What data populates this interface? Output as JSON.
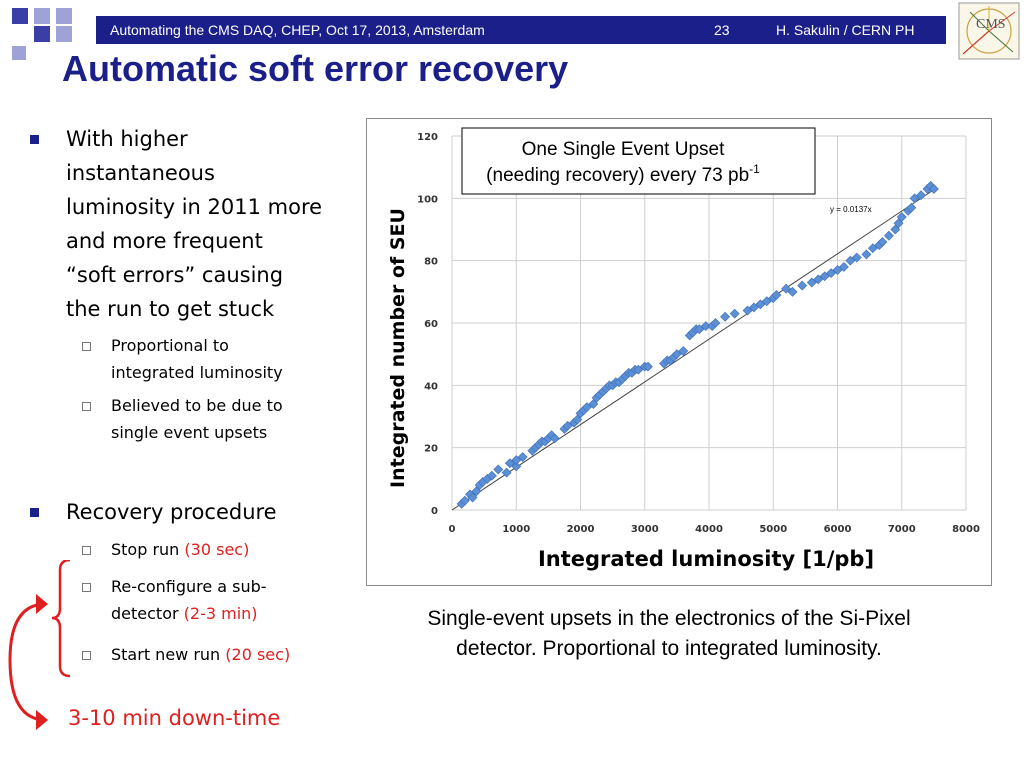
{
  "header": {
    "left_text": "Automating the CMS DAQ, CHEP, Oct 17, 2013, Amsterdam",
    "page_number": "23",
    "author": "H. Sakulin / CERN PH",
    "logo_text": "CMS",
    "colors": {
      "bar": "#1b1f8a",
      "accent_red": "#e02020"
    }
  },
  "slide": {
    "title": "Automatic soft error recovery",
    "bullets": [
      {
        "lines": [
          "With higher",
          "instantaneous",
          "luminosity in 2011 more",
          "and more frequent",
          "“soft errors” causing",
          "the run to get stuck"
        ],
        "sub": [
          {
            "lines": [
              "Proportional to",
              "integrated luminosity"
            ]
          },
          {
            "lines": [
              "Believed to be due to",
              "single event upsets"
            ]
          }
        ]
      },
      {
        "lines": [
          "Recovery procedure"
        ],
        "sub": [
          {
            "text": "Stop run",
            "highlight": "(30 sec)"
          },
          {
            "text_line1": "Re-configure a sub-",
            "text_line2": "detector",
            "highlight": "(2-3 min)"
          },
          {
            "text": "Start new run",
            "highlight": "(20 sec)"
          }
        ]
      }
    ],
    "downtime": "3-10 min down-time",
    "caption_lines": [
      "Single-event upsets in the electronics of the Si-Pixel",
      "detector. Proportional to integrated luminosity."
    ]
  },
  "chart_data": {
    "type": "scatter",
    "title": "",
    "xlabel": "Integrated luminosity [1/pb]",
    "ylabel": "Integrated number of SEU",
    "xlim": [
      0,
      8000
    ],
    "ylim": [
      0,
      120
    ],
    "xticks": [
      "0",
      "1000",
      "2000",
      "3000",
      "4000",
      "5000",
      "6000",
      "7000",
      "8000"
    ],
    "yticks": [
      "0",
      "20",
      "40",
      "60",
      "80",
      "100",
      "120"
    ],
    "grid": true,
    "annotation_line1": "One Single Event Upset",
    "annotation_line2_main": "(needing recovery) every 73 pb",
    "annotation_line2_sup": "-1",
    "fit_label": "y = 0.0137x",
    "fit_slope": 0.0137,
    "fit_range": [
      0,
      7500
    ],
    "series": [
      {
        "name": "SEU",
        "color": "#5b8fd6",
        "points": [
          [
            150,
            2
          ],
          [
            200,
            3
          ],
          [
            280,
            5
          ],
          [
            320,
            4
          ],
          [
            380,
            6
          ],
          [
            430,
            8
          ],
          [
            480,
            9
          ],
          [
            550,
            10
          ],
          [
            620,
            11
          ],
          [
            720,
            13
          ],
          [
            850,
            12
          ],
          [
            900,
            15
          ],
          [
            1000,
            14
          ],
          [
            1000,
            16
          ],
          [
            1100,
            17
          ],
          [
            1250,
            19
          ],
          [
            1300,
            20
          ],
          [
            1350,
            21
          ],
          [
            1400,
            22
          ],
          [
            1450,
            22
          ],
          [
            1500,
            23
          ],
          [
            1550,
            24
          ],
          [
            1600,
            23
          ],
          [
            1750,
            26
          ],
          [
            1800,
            27
          ],
          [
            1900,
            28
          ],
          [
            1950,
            29
          ],
          [
            2000,
            31
          ],
          [
            2050,
            32
          ],
          [
            2100,
            33
          ],
          [
            2200,
            34
          ],
          [
            2250,
            36
          ],
          [
            2300,
            37
          ],
          [
            2350,
            38
          ],
          [
            2400,
            39
          ],
          [
            2450,
            40
          ],
          [
            2500,
            40
          ],
          [
            2550,
            41
          ],
          [
            2600,
            41
          ],
          [
            2650,
            42
          ],
          [
            2700,
            43
          ],
          [
            2750,
            44
          ],
          [
            2800,
            44
          ],
          [
            2850,
            45
          ],
          [
            2900,
            45
          ],
          [
            3000,
            46
          ],
          [
            3050,
            46
          ],
          [
            3300,
            47
          ],
          [
            3350,
            48
          ],
          [
            3400,
            48
          ],
          [
            3450,
            49
          ],
          [
            3500,
            50
          ],
          [
            3600,
            51
          ],
          [
            3700,
            56
          ],
          [
            3750,
            57
          ],
          [
            3800,
            58
          ],
          [
            3850,
            58
          ],
          [
            3950,
            59
          ],
          [
            4050,
            59
          ],
          [
            4100,
            60
          ],
          [
            4250,
            62
          ],
          [
            4400,
            63
          ],
          [
            4600,
            64
          ],
          [
            4700,
            65
          ],
          [
            4800,
            66
          ],
          [
            4900,
            67
          ],
          [
            5000,
            68
          ],
          [
            5050,
            69
          ],
          [
            5200,
            71
          ],
          [
            5300,
            70
          ],
          [
            5450,
            72
          ],
          [
            5600,
            73
          ],
          [
            5700,
            74
          ],
          [
            5800,
            75
          ],
          [
            5900,
            76
          ],
          [
            6000,
            77
          ],
          [
            6100,
            78
          ],
          [
            6200,
            80
          ],
          [
            6300,
            81
          ],
          [
            6450,
            82
          ],
          [
            6550,
            84
          ],
          [
            6650,
            85
          ],
          [
            6700,
            86
          ],
          [
            6800,
            88
          ],
          [
            6900,
            90
          ],
          [
            6950,
            92
          ],
          [
            7000,
            94
          ],
          [
            7100,
            96
          ],
          [
            7150,
            97
          ],
          [
            7200,
            100
          ],
          [
            7300,
            101
          ],
          [
            7400,
            103
          ],
          [
            7450,
            104
          ],
          [
            7500,
            103
          ]
        ]
      }
    ]
  }
}
